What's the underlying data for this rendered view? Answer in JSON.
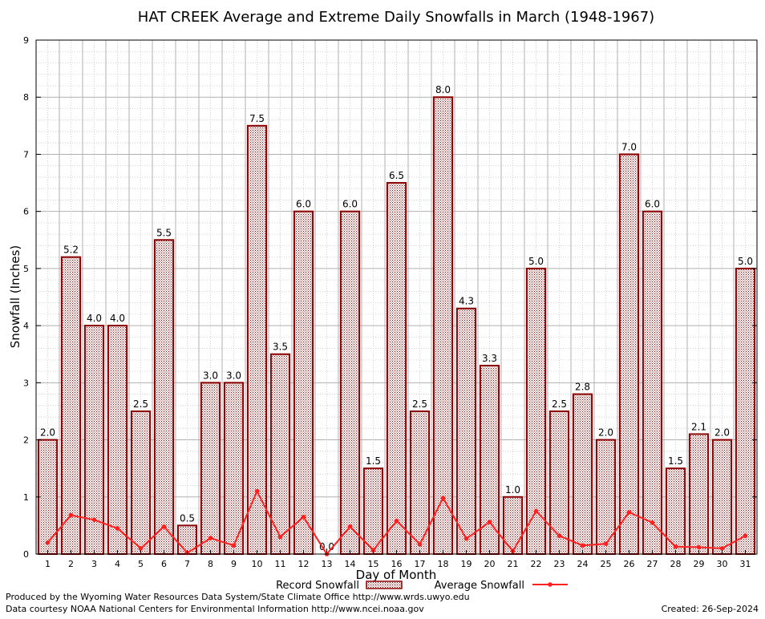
{
  "chart_data": {
    "type": "bar",
    "title": "HAT CREEK Average and Extreme Daily Snowfalls in March (1948-1967)",
    "xlabel": "Day of Month",
    "ylabel": "Snowfall (Inches)",
    "ylim": [
      0,
      9
    ],
    "yticks": [
      "0",
      "1",
      "2",
      "3",
      "4",
      "5",
      "6",
      "7",
      "8",
      "9"
    ],
    "grid": true,
    "legend_position": "bottom-center",
    "categories": [
      "1",
      "2",
      "3",
      "4",
      "5",
      "6",
      "7",
      "8",
      "9",
      "10",
      "11",
      "12",
      "13",
      "14",
      "15",
      "16",
      "17",
      "18",
      "19",
      "20",
      "21",
      "22",
      "23",
      "24",
      "25",
      "26",
      "27",
      "28",
      "29",
      "30",
      "31"
    ],
    "series": [
      {
        "name": "Record Snowfall",
        "kind": "bar",
        "color": "#8b0000",
        "values": [
          2.0,
          5.2,
          4.0,
          4.0,
          2.5,
          5.5,
          0.5,
          3.0,
          3.0,
          7.5,
          3.5,
          6.0,
          0.0,
          6.0,
          1.5,
          6.5,
          2.5,
          8.0,
          4.3,
          3.3,
          1.0,
          5.0,
          2.5,
          2.8,
          2.0,
          7.0,
          6.0,
          1.5,
          2.1,
          2.0,
          5.0
        ],
        "labels": [
          "2.0",
          "5.2",
          "4.0",
          "4.0",
          "2.5",
          "5.5",
          "0.5",
          "3.0",
          "3.0",
          "7.5",
          "3.5",
          "6.0",
          "0.0",
          "6.0",
          "1.5",
          "6.5",
          "2.5",
          "8.0",
          "4.3",
          "3.3",
          "1.0",
          "5.0",
          "2.5",
          "2.8",
          "2.0",
          "7.0",
          "6.0",
          "1.5",
          "2.1",
          "2.0",
          "5.0"
        ]
      },
      {
        "name": "Average Snowfall",
        "kind": "line",
        "color": "#ff2020",
        "values": [
          0.2,
          0.68,
          0.6,
          0.45,
          0.1,
          0.48,
          0.02,
          0.28,
          0.15,
          1.1,
          0.3,
          0.65,
          0.0,
          0.48,
          0.07,
          0.58,
          0.17,
          0.98,
          0.27,
          0.56,
          0.05,
          0.75,
          0.32,
          0.15,
          0.18,
          0.73,
          0.55,
          0.13,
          0.12,
          0.1,
          0.32
        ]
      }
    ]
  },
  "footer": {
    "producer": "Produced by the Wyoming Water Resources Data System/State Climate Office http://www.wrds.uwyo.edu",
    "source": "Data courtesy NOAA National Centers for Environmental Information http://www.ncei.noaa.gov",
    "created": "Created:  26-Sep-2024"
  }
}
